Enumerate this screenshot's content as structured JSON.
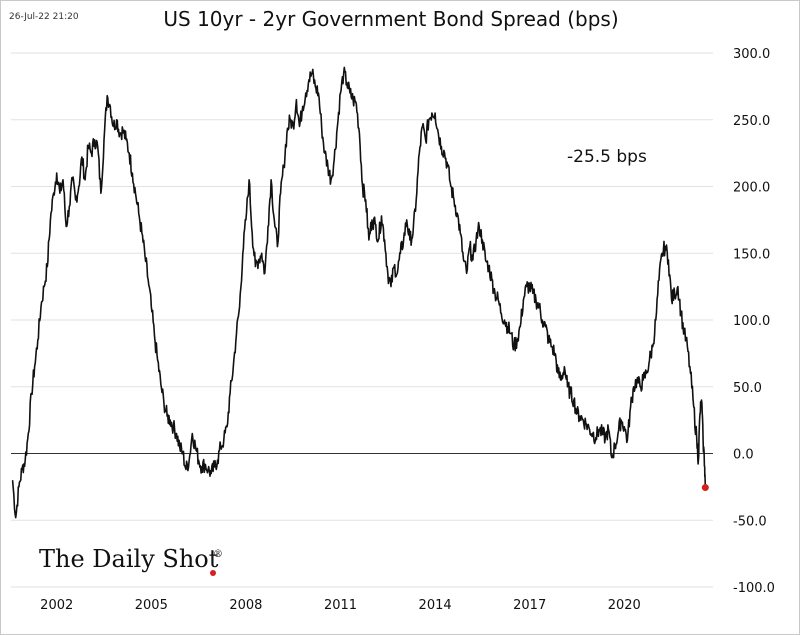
{
  "timestamp": "26-Jul-22 21:20",
  "logo": {
    "text": "The Daily Shot",
    "registered": "®"
  },
  "chart_data": {
    "type": "line",
    "title": "US 10yr - 2yr Government Bond Spread (bps)",
    "xlabel": "",
    "ylabel": "",
    "xlim": [
      2000.55,
      2022.75
    ],
    "ylim": [
      -100,
      300
    ],
    "x_ticks": [
      2002,
      2005,
      2008,
      2011,
      2014,
      2017,
      2020
    ],
    "y_ticks": [
      300,
      250,
      200,
      150,
      100,
      50,
      0,
      -50,
      -100
    ],
    "y_tick_labels": [
      "300.0",
      "250.0",
      "200.0",
      "150.0",
      "100.0",
      "50.0",
      "0.0",
      "-50.0",
      "-100.0"
    ],
    "grid": "horizontal",
    "zero_line": 0,
    "annotation": "-25.5 bps",
    "last_point": {
      "x": 2022.57,
      "y": -25.5,
      "color": "#d62020"
    },
    "series": [
      {
        "color": "#111111",
        "points": [
          [
            2000.6,
            -20
          ],
          [
            2000.7,
            -48
          ],
          [
            2000.8,
            -25
          ],
          [
            2000.9,
            -12
          ],
          [
            2001.0,
            -5
          ],
          [
            2001.1,
            15
          ],
          [
            2001.2,
            45
          ],
          [
            2001.3,
            65
          ],
          [
            2001.4,
            85
          ],
          [
            2001.5,
            110
          ],
          [
            2001.6,
            125
          ],
          [
            2001.7,
            140
          ],
          [
            2001.8,
            175
          ],
          [
            2001.9,
            195
          ],
          [
            2002.0,
            210
          ],
          [
            2002.1,
            195
          ],
          [
            2002.2,
            205
          ],
          [
            2002.3,
            170
          ],
          [
            2002.4,
            185
          ],
          [
            2002.5,
            205
          ],
          [
            2002.6,
            190
          ],
          [
            2002.7,
            200
          ],
          [
            2002.8,
            222
          ],
          [
            2002.9,
            205
          ],
          [
            2003.0,
            230
          ],
          [
            2003.1,
            225
          ],
          [
            2003.2,
            235
          ],
          [
            2003.3,
            230
          ],
          [
            2003.4,
            195
          ],
          [
            2003.5,
            235
          ],
          [
            2003.6,
            268
          ],
          [
            2003.7,
            260
          ],
          [
            2003.8,
            245
          ],
          [
            2003.9,
            250
          ],
          [
            2004.0,
            240
          ],
          [
            2004.1,
            242
          ],
          [
            2004.2,
            235
          ],
          [
            2004.3,
            225
          ],
          [
            2004.4,
            210
          ],
          [
            2004.5,
            195
          ],
          [
            2004.6,
            180
          ],
          [
            2004.7,
            165
          ],
          [
            2004.8,
            148
          ],
          [
            2004.9,
            130
          ],
          [
            2005.0,
            110
          ],
          [
            2005.1,
            88
          ],
          [
            2005.2,
            70
          ],
          [
            2005.3,
            52
          ],
          [
            2005.4,
            38
          ],
          [
            2005.5,
            28
          ],
          [
            2005.6,
            25
          ],
          [
            2005.7,
            20
          ],
          [
            2005.8,
            15
          ],
          [
            2005.9,
            5
          ],
          [
            2006.0,
            0
          ],
          [
            2006.1,
            -12
          ],
          [
            2006.2,
            -5
          ],
          [
            2006.3,
            15
          ],
          [
            2006.4,
            5
          ],
          [
            2006.5,
            -5
          ],
          [
            2006.6,
            -10
          ],
          [
            2006.7,
            -8
          ],
          [
            2006.8,
            -12
          ],
          [
            2006.9,
            -15
          ],
          [
            2007.0,
            -10
          ],
          [
            2007.1,
            -5
          ],
          [
            2007.2,
            5
          ],
          [
            2007.3,
            10
          ],
          [
            2007.4,
            20
          ],
          [
            2007.5,
            45
          ],
          [
            2007.6,
            65
          ],
          [
            2007.7,
            90
          ],
          [
            2007.8,
            110
          ],
          [
            2007.9,
            150
          ],
          [
            2008.0,
            175
          ],
          [
            2008.1,
            205
          ],
          [
            2008.2,
            165
          ],
          [
            2008.3,
            140
          ],
          [
            2008.4,
            145
          ],
          [
            2008.5,
            150
          ],
          [
            2008.6,
            135
          ],
          [
            2008.7,
            170
          ],
          [
            2008.8,
            205
          ],
          [
            2008.9,
            175
          ],
          [
            2009.0,
            155
          ],
          [
            2009.1,
            195
          ],
          [
            2009.2,
            215
          ],
          [
            2009.3,
            240
          ],
          [
            2009.4,
            250
          ],
          [
            2009.5,
            245
          ],
          [
            2009.6,
            265
          ],
          [
            2009.7,
            245
          ],
          [
            2009.8,
            260
          ],
          [
            2009.9,
            270
          ],
          [
            2010.0,
            280
          ],
          [
            2010.1,
            285
          ],
          [
            2010.2,
            275
          ],
          [
            2010.3,
            270
          ],
          [
            2010.4,
            245
          ],
          [
            2010.5,
            225
          ],
          [
            2010.6,
            215
          ],
          [
            2010.7,
            205
          ],
          [
            2010.8,
            220
          ],
          [
            2010.9,
            245
          ],
          [
            2011.0,
            270
          ],
          [
            2011.1,
            285
          ],
          [
            2011.2,
            278
          ],
          [
            2011.3,
            270
          ],
          [
            2011.4,
            265
          ],
          [
            2011.5,
            262
          ],
          [
            2011.6,
            240
          ],
          [
            2011.7,
            200
          ],
          [
            2011.8,
            190
          ],
          [
            2011.9,
            160
          ],
          [
            2012.0,
            175
          ],
          [
            2012.1,
            172
          ],
          [
            2012.2,
            160
          ],
          [
            2012.3,
            178
          ],
          [
            2012.4,
            160
          ],
          [
            2012.5,
            135
          ],
          [
            2012.6,
            125
          ],
          [
            2012.7,
            140
          ],
          [
            2012.8,
            135
          ],
          [
            2012.9,
            150
          ],
          [
            2013.0,
            160
          ],
          [
            2013.1,
            175
          ],
          [
            2013.2,
            160
          ],
          [
            2013.3,
            165
          ],
          [
            2013.4,
            190
          ],
          [
            2013.5,
            225
          ],
          [
            2013.6,
            245
          ],
          [
            2013.7,
            235
          ],
          [
            2013.8,
            250
          ],
          [
            2013.9,
            255
          ],
          [
            2014.0,
            255
          ],
          [
            2014.1,
            240
          ],
          [
            2014.2,
            230
          ],
          [
            2014.3,
            225
          ],
          [
            2014.4,
            215
          ],
          [
            2014.5,
            200
          ],
          [
            2014.6,
            190
          ],
          [
            2014.7,
            180
          ],
          [
            2014.8,
            165
          ],
          [
            2014.9,
            145
          ],
          [
            2015.0,
            135
          ],
          [
            2015.1,
            155
          ],
          [
            2015.2,
            145
          ],
          [
            2015.3,
            160
          ],
          [
            2015.4,
            170
          ],
          [
            2015.5,
            160
          ],
          [
            2015.6,
            145
          ],
          [
            2015.7,
            140
          ],
          [
            2015.8,
            130
          ],
          [
            2015.9,
            120
          ],
          [
            2016.0,
            115
          ],
          [
            2016.1,
            105
          ],
          [
            2016.2,
            100
          ],
          [
            2016.3,
            95
          ],
          [
            2016.4,
            90
          ],
          [
            2016.5,
            80
          ],
          [
            2016.6,
            85
          ],
          [
            2016.7,
            95
          ],
          [
            2016.8,
            115
          ],
          [
            2016.9,
            125
          ],
          [
            2017.0,
            125
          ],
          [
            2017.1,
            120
          ],
          [
            2017.2,
            115
          ],
          [
            2017.3,
            110
          ],
          [
            2017.4,
            100
          ],
          [
            2017.5,
            95
          ],
          [
            2017.6,
            85
          ],
          [
            2017.7,
            80
          ],
          [
            2017.8,
            75
          ],
          [
            2017.9,
            60
          ],
          [
            2018.0,
            55
          ],
          [
            2018.1,
            65
          ],
          [
            2018.2,
            50
          ],
          [
            2018.3,
            45
          ],
          [
            2018.4,
            40
          ],
          [
            2018.5,
            30
          ],
          [
            2018.6,
            28
          ],
          [
            2018.7,
            25
          ],
          [
            2018.8,
            22
          ],
          [
            2018.9,
            18
          ],
          [
            2019.0,
            15
          ],
          [
            2019.1,
            12
          ],
          [
            2019.2,
            18
          ],
          [
            2019.3,
            15
          ],
          [
            2019.4,
            12
          ],
          [
            2019.5,
            18
          ],
          [
            2019.6,
            -3
          ],
          [
            2019.7,
            5
          ],
          [
            2019.8,
            15
          ],
          [
            2019.9,
            25
          ],
          [
            2020.0,
            20
          ],
          [
            2020.1,
            10
          ],
          [
            2020.2,
            35
          ],
          [
            2020.3,
            50
          ],
          [
            2020.4,
            55
          ],
          [
            2020.5,
            50
          ],
          [
            2020.6,
            55
          ],
          [
            2020.7,
            60
          ],
          [
            2020.8,
            70
          ],
          [
            2020.9,
            80
          ],
          [
            2021.0,
            100
          ],
          [
            2021.1,
            130
          ],
          [
            2021.2,
            150
          ],
          [
            2021.3,
            155
          ],
          [
            2021.4,
            145
          ],
          [
            2021.5,
            115
          ],
          [
            2021.6,
            120
          ],
          [
            2021.7,
            125
          ],
          [
            2021.8,
            105
          ],
          [
            2021.9,
            90
          ],
          [
            2022.0,
            80
          ],
          [
            2022.1,
            60
          ],
          [
            2022.2,
            35
          ],
          [
            2022.3,
            10
          ],
          [
            2022.35,
            -5
          ],
          [
            2022.4,
            30
          ],
          [
            2022.45,
            40
          ],
          [
            2022.5,
            10
          ],
          [
            2022.55,
            -10
          ],
          [
            2022.57,
            -25.5
          ]
        ]
      }
    ]
  }
}
